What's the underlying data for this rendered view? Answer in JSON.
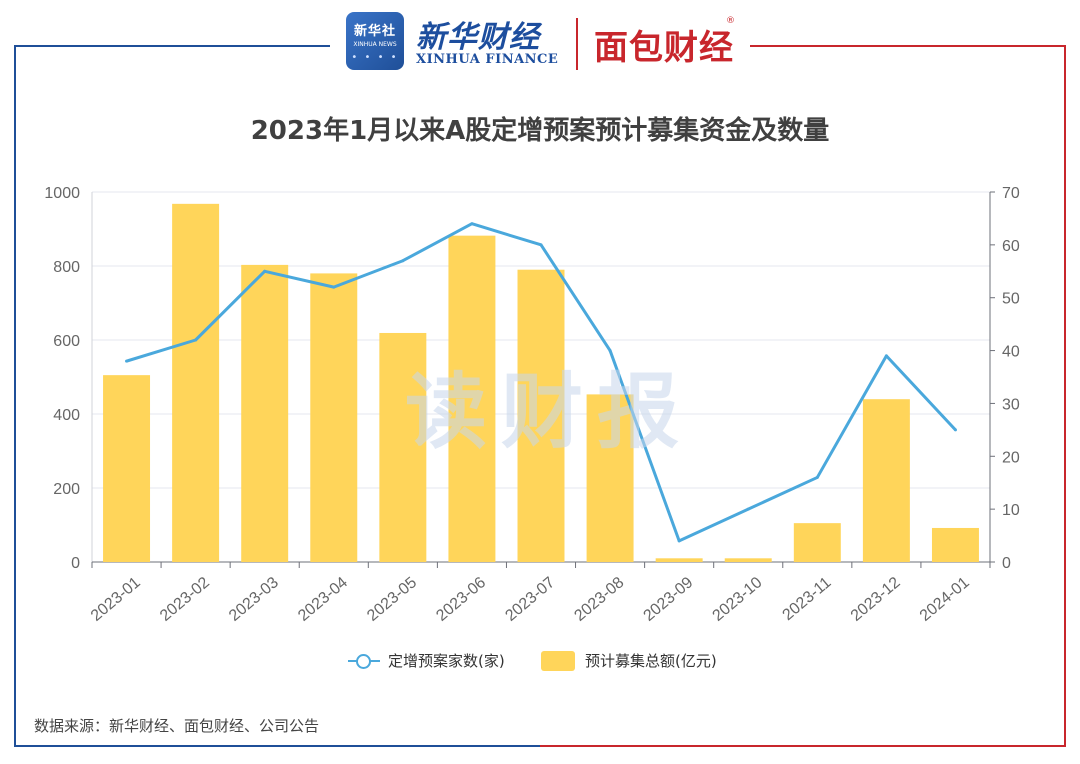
{
  "header": {
    "xinhua_badge": "新华社",
    "xinhua_badge_sub": "XINHUA NEWS",
    "xinhua_name": "新华财经",
    "xinhua_sub": "XINHUA FINANCE",
    "mianbao_name": "面包财经",
    "mianbao_reg": "®"
  },
  "watermark": "读财报",
  "source": "数据来源：新华财经、面包财经、公司公告",
  "colors": {
    "frame_left": "#1f4f98",
    "frame_right": "#c8262c",
    "bar": "#ffd55a",
    "line": "#4aa8dc"
  },
  "chart_data": {
    "type": "bar",
    "title": "2023年1月以来A股定增预案预计募集资金及数量",
    "categories": [
      "2023-01",
      "2023-02",
      "2023-03",
      "2023-04",
      "2023-05",
      "2023-06",
      "2023-07",
      "2023-08",
      "2023-09",
      "2023-10",
      "2023-11",
      "2023-12",
      "2024-01"
    ],
    "series": [
      {
        "name": "预计募集总额(亿元)",
        "type": "bar",
        "axis": "left",
        "values": [
          505,
          968,
          803,
          780,
          619,
          882,
          790,
          453,
          10,
          10,
          105,
          440,
          92
        ]
      },
      {
        "name": "定增预案家数(家)",
        "type": "line",
        "axis": "right",
        "values": [
          38,
          42,
          55,
          52,
          57,
          64,
          60,
          40,
          4,
          10,
          16,
          39,
          25
        ]
      }
    ],
    "y_left": {
      "lim": [
        0,
        1000
      ],
      "ticks": [
        0,
        200,
        400,
        600,
        800,
        1000
      ]
    },
    "y_right": {
      "lim": [
        0,
        70
      ],
      "ticks": [
        0,
        10,
        20,
        30,
        40,
        50,
        60,
        70
      ]
    },
    "grid": true,
    "legend_position": "bottom"
  }
}
